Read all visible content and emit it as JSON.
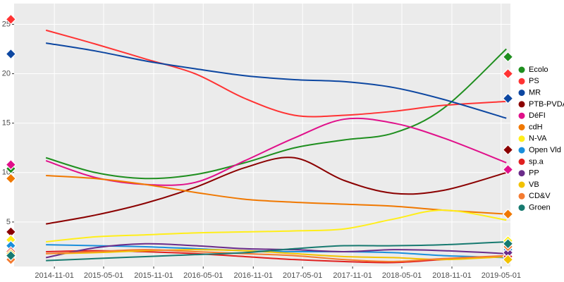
{
  "chart_data": {
    "type": "line",
    "x": [
      "2014-10-01",
      "2015-04-01",
      "2015-10-01",
      "2016-04-01",
      "2016-10-01",
      "2017-04-01",
      "2017-10-01",
      "2018-04-01",
      "2018-10-01",
      "2019-05-20"
    ],
    "election_x": [
      "2014-05-25",
      "2019-05-26"
    ],
    "xlim": [
      "2014-06-06",
      "2019-06-04"
    ],
    "xticks": [
      "2014-11-01",
      "2015-05-01",
      "2015-11-01",
      "2016-05-01",
      "2016-11-01",
      "2017-05-01",
      "2017-11-01",
      "2018-05-01",
      "2018-11-01",
      "2019-05-01"
    ],
    "ylim": [
      0.5,
      27.1
    ],
    "yticks": [
      5,
      10,
      15,
      20,
      25
    ],
    "grid": true,
    "legend": "right",
    "series": [
      {
        "name": "Ecolo",
        "color": "#1f8f1f",
        "values": [
          11.5,
          10.0,
          9.4,
          9.8,
          11.0,
          12.5,
          13.3,
          14.0,
          16.5,
          22.5
        ],
        "election": [
          10.4,
          21.7
        ]
      },
      {
        "name": "PS",
        "color": "#ff3333",
        "values": [
          24.4,
          23.0,
          21.5,
          20.0,
          17.5,
          15.8,
          15.8,
          16.2,
          16.8,
          17.2
        ],
        "election": [
          25.5,
          20.0
        ]
      },
      {
        "name": "MR",
        "color": "#0d47a1",
        "values": [
          23.1,
          22.3,
          21.3,
          20.5,
          19.8,
          19.4,
          19.2,
          18.6,
          17.4,
          15.5
        ],
        "election": [
          22.0,
          17.5
        ]
      },
      {
        "name": "PTB-PVDA",
        "color": "#8b0000",
        "values": [
          4.8,
          5.7,
          6.9,
          8.5,
          10.5,
          11.5,
          9.2,
          7.9,
          8.2,
          10.0
        ],
        "election": [
          4.0,
          12.3
        ]
      },
      {
        "name": "DéFI",
        "color": "#e0108a",
        "values": [
          11.2,
          9.5,
          8.8,
          9.0,
          11.2,
          13.5,
          15.4,
          15.0,
          13.5,
          11.0
        ],
        "election": [
          10.8,
          10.3
        ]
      },
      {
        "name": "cdH",
        "color": "#f07800",
        "values": [
          9.7,
          9.4,
          8.8,
          8.0,
          7.3,
          7.0,
          6.8,
          6.6,
          6.2,
          5.8
        ],
        "election": [
          9.4,
          5.8
        ]
      },
      {
        "name": "N-VA",
        "color": "#ffee1a",
        "values": [
          3.0,
          3.5,
          3.7,
          3.9,
          4.0,
          4.1,
          4.3,
          5.3,
          6.2,
          5.2
        ],
        "election": [
          3.2,
          3.1
        ]
      },
      {
        "name": "Open Vld",
        "color": "#1a8fdc",
        "values": [
          2.7,
          2.6,
          2.5,
          2.3,
          2.1,
          2.0,
          2.0,
          1.9,
          1.6,
          1.4
        ],
        "election": [
          2.6,
          2.2
        ]
      },
      {
        "name": "sp.a",
        "color": "#e02020",
        "values": [
          2.0,
          2.1,
          2.0,
          1.8,
          1.5,
          1.2,
          1.0,
          0.9,
          1.2,
          1.5
        ],
        "election": [
          2.0,
          1.5
        ]
      },
      {
        "name": "PP",
        "color": "#6a2c8a",
        "values": [
          1.4,
          2.4,
          2.8,
          2.6,
          2.3,
          2.2,
          2.0,
          2.2,
          2.1,
          1.8
        ],
        "election": [
          1.5,
          1.9
        ]
      },
      {
        "name": "VB",
        "color": "#f2c200",
        "values": [
          1.8,
          1.9,
          2.1,
          2.2,
          2.1,
          1.8,
          1.5,
          1.4,
          1.2,
          1.5
        ],
        "election": [
          1.8,
          1.2
        ]
      },
      {
        "name": "CD&V",
        "color": "#f47b30",
        "values": [
          1.8,
          2.0,
          2.2,
          2.0,
          1.8,
          1.6,
          1.2,
          1.0,
          1.3,
          1.6
        ],
        "election": [
          1.2,
          2.5
        ]
      },
      {
        "name": "Groen",
        "color": "#177a70",
        "values": [
          1.1,
          1.3,
          1.5,
          1.7,
          1.9,
          2.3,
          2.6,
          2.6,
          2.7,
          3.0
        ],
        "election": [
          1.6,
          2.8
        ]
      }
    ]
  }
}
